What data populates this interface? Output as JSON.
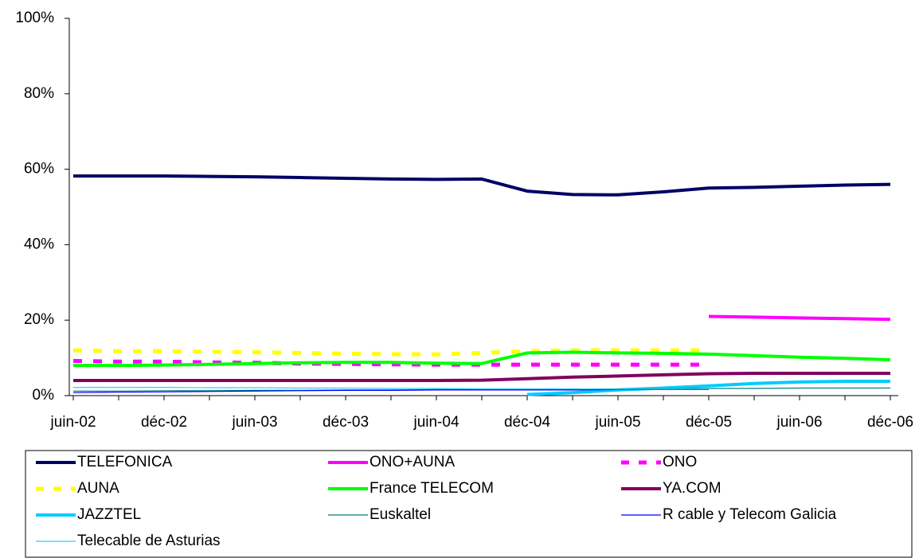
{
  "chart_data": {
    "type": "line",
    "categories": [
      "juin-02",
      null,
      "déc-02",
      null,
      "juin-03",
      null,
      "déc-03",
      null,
      "juin-04",
      null,
      "déc-04",
      null,
      "juin-05",
      null,
      "déc-05",
      null,
      "juin-06",
      null,
      "déc-06"
    ],
    "ylim": [
      0,
      100
    ],
    "yticks": [
      {
        "value": 0,
        "label": "0%"
      },
      {
        "value": 20,
        "label": "20%"
      },
      {
        "value": 40,
        "label": "40%"
      },
      {
        "value": 60,
        "label": "60%"
      },
      {
        "value": 80,
        "label": "80%"
      },
      {
        "value": 100,
        "label": "100%"
      }
    ],
    "legend": "bottom",
    "series": [
      {
        "name": "TELEFONICA",
        "color": "#000066",
        "style": "thick",
        "values": [
          58.2,
          58.2,
          58.2,
          58.1,
          58.0,
          57.8,
          57.6,
          57.4,
          57.3,
          57.4,
          54.2,
          53.3,
          53.2,
          54.0,
          55.0,
          55.2,
          55.5,
          55.8,
          56.0
        ]
      },
      {
        "name": "ONO+AUNA",
        "color": "#ff00ff",
        "style": "thick",
        "values": [
          null,
          null,
          null,
          null,
          null,
          null,
          null,
          null,
          null,
          null,
          null,
          null,
          null,
          null,
          21.0,
          20.8,
          20.6,
          20.4,
          20.2
        ]
      },
      {
        "name": "ONO",
        "color": "#ff00ff",
        "style": "dashed",
        "values": [
          9.2,
          9.0,
          9.0,
          8.8,
          8.7,
          8.5,
          8.4,
          8.3,
          8.2,
          8.2,
          8.2,
          8.2,
          8.2,
          8.2,
          8.2,
          null,
          null,
          null,
          null
        ]
      },
      {
        "name": "AUNA",
        "color": "#ffff00",
        "style": "dashed",
        "values": [
          12.0,
          11.8,
          11.8,
          11.6,
          11.5,
          11.3,
          11.1,
          11.0,
          10.9,
          11.3,
          11.8,
          12.0,
          12.0,
          12.0,
          12.0,
          null,
          null,
          null,
          null
        ]
      },
      {
        "name": "France TELECOM",
        "color": "#00ff00",
        "style": "thick",
        "values": [
          8.0,
          8.0,
          8.1,
          8.3,
          8.5,
          8.7,
          8.8,
          8.8,
          8.6,
          8.5,
          11.3,
          11.5,
          11.3,
          11.2,
          11.0,
          10.6,
          10.2,
          9.9,
          9.5
        ]
      },
      {
        "name": "YA.COM",
        "color": "#800060",
        "style": "thick",
        "values": [
          4.0,
          4.0,
          4.0,
          4.0,
          4.0,
          4.0,
          4.0,
          4.0,
          4.0,
          4.1,
          4.5,
          4.9,
          5.2,
          5.5,
          5.8,
          5.9,
          5.9,
          5.9,
          5.9
        ]
      },
      {
        "name": "JAZZTEL",
        "color": "#00ccff",
        "style": "thick",
        "values": [
          null,
          null,
          null,
          null,
          null,
          null,
          null,
          null,
          null,
          null,
          0.3,
          0.8,
          1.5,
          2.0,
          2.6,
          3.2,
          3.6,
          3.8,
          3.8
        ]
      },
      {
        "name": "Euskaltel",
        "color": "#008080",
        "style": "thin",
        "values": [
          1.2,
          1.2,
          1.3,
          1.3,
          1.4,
          1.4,
          1.5,
          1.5,
          1.6,
          1.6,
          1.7,
          1.7,
          1.8,
          1.8,
          1.9,
          1.9,
          2.0,
          2.0,
          2.0
        ]
      },
      {
        "name": "R cable y Telecom Galicia",
        "color": "#0000ff",
        "style": "thin",
        "values": [
          0.8,
          0.9,
          1.0,
          1.1,
          1.2,
          1.3,
          1.4,
          1.4,
          1.5,
          1.5,
          1.5,
          1.5,
          1.6,
          1.6,
          1.6,
          null,
          null,
          null,
          null
        ]
      },
      {
        "name": "Telecable de Asturias",
        "color": "#33ccff",
        "style": "thin",
        "values": [
          2.2,
          2.2,
          2.2,
          2.1,
          2.1,
          2.0,
          2.0,
          1.9,
          1.9,
          1.8,
          1.8,
          1.8,
          1.7,
          1.7,
          1.7,
          null,
          null,
          null,
          null
        ]
      }
    ]
  }
}
